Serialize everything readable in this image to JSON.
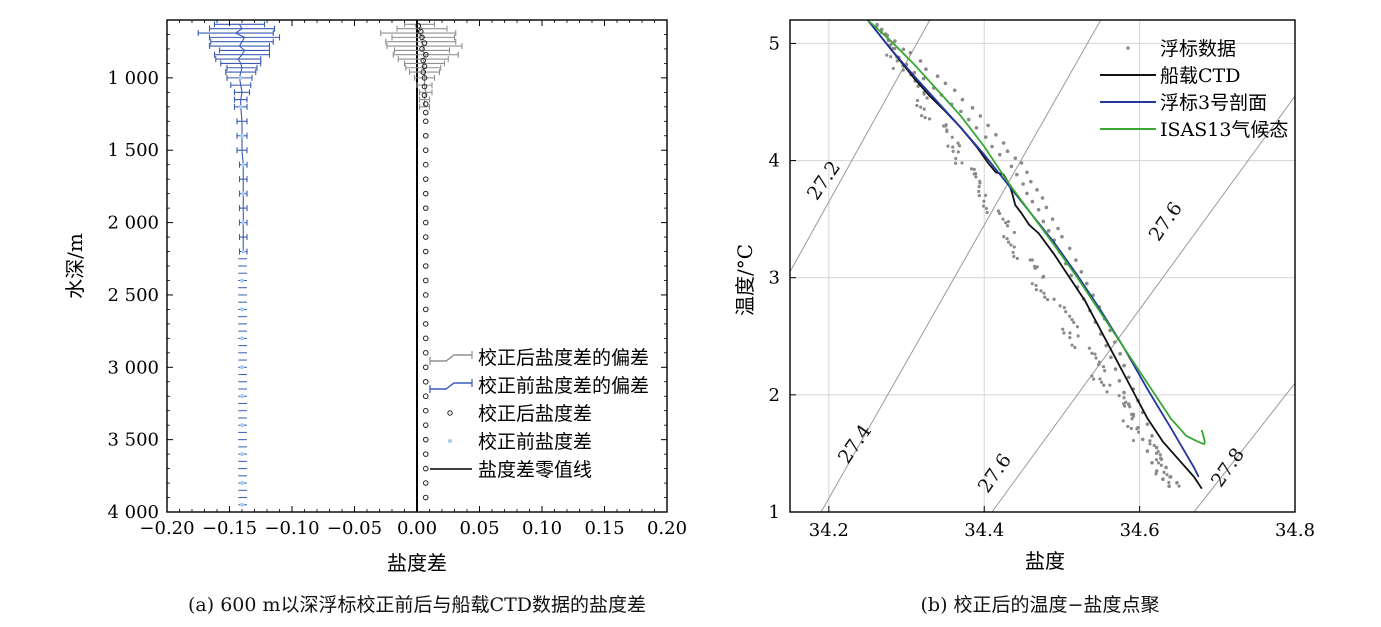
{
  "figure": {
    "caption_a": "(a) 600 m以深浮标校正前后与船载CTD数据的盐度差",
    "caption_b": "(b) 校正后的温度−盐度点聚"
  },
  "chart_data": [
    {
      "type": "scatter",
      "panel": "a",
      "xlabel": "盐度差",
      "ylabel": "水深/m",
      "xlim": [
        -0.2,
        0.2
      ],
      "ylim": [
        600,
        4000
      ],
      "y_reversed": true,
      "xticks": [
        -0.2,
        -0.15,
        -0.1,
        -0.05,
        0.0,
        0.05,
        0.1,
        0.15,
        0.2
      ],
      "xtick_labels": [
        "−0.20",
        "−0.15",
        "−0.10",
        "−0.05",
        "0.00",
        "0.05",
        "0.10",
        "0.15",
        "0.20"
      ],
      "yticks": [
        1000,
        1500,
        2000,
        2500,
        3000,
        3500,
        4000
      ],
      "ytick_labels": [
        "1 000",
        "1 500",
        "2 000",
        "2 500",
        "3 000",
        "3 500",
        "4 000"
      ],
      "legend_position": "bottom-right",
      "colors": {
        "after": "#909090",
        "before": "#3b5bb5",
        "after_point": "#222222",
        "before_point": "#a9cdf0",
        "zero_line": "#000000"
      },
      "series": [
        {
          "name": "校正后盐度差的偏差",
          "style": "errorbar",
          "depth": [
            630,
            660,
            690,
            720,
            750,
            780,
            810,
            840,
            870,
            900,
            930,
            960,
            1000,
            1050,
            1100,
            1150,
            1200
          ],
          "center": [
            0.002,
            0.004,
            0.001,
            0.005,
            0.003,
            0.006,
            0.004,
            0.007,
            0.005,
            0.006,
            0.005,
            0.006,
            0.006,
            0.006,
            0.007,
            0.006,
            0.006
          ],
          "halfwidth": [
            0.012,
            0.02,
            0.03,
            0.025,
            0.028,
            0.03,
            0.022,
            0.026,
            0.02,
            0.016,
            0.014,
            0.012,
            0.008,
            0.006,
            0.005,
            0.004,
            0.004
          ]
        },
        {
          "name": "校正前盐度差的偏差",
          "style": "errorbar",
          "depth": [
            630,
            660,
            690,
            720,
            750,
            780,
            810,
            840,
            870,
            900,
            930,
            960,
            1000,
            1050,
            1100,
            1150,
            1200,
            1300,
            1400,
            1500,
            1600,
            1700,
            1800,
            1900,
            2000,
            2100,
            2200
          ],
          "center": [
            -0.142,
            -0.14,
            -0.145,
            -0.138,
            -0.14,
            -0.142,
            -0.138,
            -0.14,
            -0.143,
            -0.141,
            -0.14,
            -0.141,
            -0.142,
            -0.141,
            -0.14,
            -0.141,
            -0.141,
            -0.14,
            -0.14,
            -0.14,
            -0.139,
            -0.139,
            -0.139,
            -0.139,
            -0.139,
            -0.139,
            -0.139
          ],
          "halfwidth": [
            0.02,
            0.026,
            0.03,
            0.028,
            0.025,
            0.024,
            0.02,
            0.022,
            0.018,
            0.016,
            0.012,
            0.012,
            0.01,
            0.008,
            0.006,
            0.005,
            0.005,
            0.004,
            0.004,
            0.004,
            0.003,
            0.003,
            0.003,
            0.003,
            0.003,
            0.003,
            0.003
          ]
        },
        {
          "name": "校正后盐度差",
          "style": "points",
          "depth": [
            640,
            680,
            720,
            760,
            800,
            840,
            880,
            920,
            960,
            1000,
            1060,
            1120,
            1180,
            1240,
            1300,
            1400,
            1500,
            1600,
            1700,
            1800,
            1900,
            2000,
            2100,
            2200,
            2300,
            2400,
            2500,
            2600,
            2700,
            2800,
            2900,
            3000,
            3100,
            3200,
            3300,
            3400,
            3500,
            3600,
            3700,
            3800,
            3900
          ],
          "value": [
            0.001,
            0.003,
            0.004,
            0.006,
            0.004,
            0.007,
            0.005,
            0.006,
            0.005,
            0.006,
            0.006,
            0.006,
            0.007,
            0.007,
            0.007,
            0.007,
            0.007,
            0.007,
            0.007,
            0.007,
            0.007,
            0.007,
            0.007,
            0.007,
            0.007,
            0.007,
            0.007,
            0.007,
            0.007,
            0.007,
            0.007,
            0.007,
            0.007,
            0.007,
            0.007,
            0.007,
            0.007,
            0.007,
            0.007,
            0.007,
            0.007
          ]
        },
        {
          "name": "校正前盐度差",
          "style": "points",
          "depth": [
            1000,
            1200,
            1400,
            1600,
            1800,
            2000,
            2200,
            2400,
            2600,
            2800,
            3000,
            3200,
            3400,
            3600,
            3800,
            3950
          ],
          "value": [
            -0.141,
            -0.141,
            -0.14,
            -0.139,
            -0.139,
            -0.139,
            -0.139,
            -0.14,
            -0.14,
            -0.14,
            -0.14,
            -0.14,
            -0.14,
            -0.14,
            -0.14,
            -0.14
          ]
        },
        {
          "name": "盐度差零值线",
          "style": "line",
          "x": [
            0.0,
            0.0
          ],
          "y": [
            600,
            4000
          ]
        }
      ]
    },
    {
      "type": "scatter",
      "panel": "b",
      "xlabel": "盐度",
      "ylabel": "温度/°C",
      "xlim": [
        34.15,
        34.8
      ],
      "ylim": [
        1,
        5.2
      ],
      "xticks": [
        34.2,
        34.4,
        34.6,
        34.8
      ],
      "xtick_labels": [
        "34.2",
        "34.4",
        "34.6",
        "34.8"
      ],
      "yticks": [
        1,
        2,
        3,
        4,
        5
      ],
      "ytick_labels": [
        "1",
        "2",
        "3",
        "4",
        "5"
      ],
      "grid": true,
      "legend_position": "top-right",
      "colors": {
        "float_data": "#8a8a8a",
        "ship_ctd": "#111111",
        "float3": "#2436a0",
        "isas13": "#38a832",
        "isopycnal": "#9a9a9a"
      },
      "series": [
        {
          "name": "浮标数据",
          "style": "points",
          "points": [
            [
              34.262,
              5.16
            ],
            [
              34.273,
              5.08
            ],
            [
              34.268,
              5.12
            ],
            [
              34.285,
              5.02
            ],
            [
              34.296,
              4.95
            ],
            [
              34.278,
              4.98
            ],
            [
              34.305,
              4.92
            ],
            [
              34.29,
              4.88
            ],
            [
              34.318,
              4.85
            ],
            [
              34.3,
              4.82
            ],
            [
              34.325,
              4.78
            ],
            [
              34.31,
              4.75
            ],
            [
              34.34,
              4.72
            ],
            [
              34.322,
              4.7
            ],
            [
              34.35,
              4.66
            ],
            [
              34.335,
              4.62
            ],
            [
              34.362,
              4.6
            ],
            [
              34.345,
              4.56
            ],
            [
              34.372,
              4.52
            ],
            [
              34.358,
              4.48
            ],
            [
              34.385,
              4.45
            ],
            [
              34.37,
              4.42
            ],
            [
              34.395,
              4.38
            ],
            [
              34.38,
              4.35
            ],
            [
              34.405,
              4.3
            ],
            [
              34.39,
              4.28
            ],
            [
              34.415,
              4.22
            ],
            [
              34.402,
              4.2
            ],
            [
              34.425,
              4.15
            ],
            [
              34.41,
              4.12
            ],
            [
              34.43,
              4.08
            ],
            [
              34.44,
              4.02
            ],
            [
              34.42,
              4.05
            ],
            [
              34.448,
              3.98
            ],
            [
              34.435,
              3.95
            ],
            [
              34.455,
              3.9
            ],
            [
              34.442,
              3.88
            ],
            [
              34.46,
              3.82
            ],
            [
              34.45,
              3.8
            ],
            [
              34.468,
              3.75
            ],
            [
              34.455,
              3.72
            ],
            [
              34.475,
              3.68
            ],
            [
              34.462,
              3.65
            ],
            [
              34.48,
              3.6
            ],
            [
              34.47,
              3.58
            ],
            [
              34.488,
              3.5
            ],
            [
              34.476,
              3.48
            ],
            [
              34.495,
              3.42
            ],
            [
              34.483,
              3.4
            ],
            [
              34.5,
              3.35
            ],
            [
              34.49,
              3.32
            ],
            [
              34.51,
              3.25
            ],
            [
              34.497,
              3.22
            ],
            [
              34.518,
              3.15
            ],
            [
              34.505,
              3.12
            ],
            [
              34.525,
              3.05
            ],
            [
              34.512,
              3.02
            ],
            [
              34.532,
              2.95
            ],
            [
              34.52,
              2.92
            ],
            [
              34.54,
              2.85
            ],
            [
              34.528,
              2.82
            ],
            [
              34.548,
              2.75
            ],
            [
              34.536,
              2.72
            ],
            [
              34.555,
              2.65
            ],
            [
              34.543,
              2.62
            ],
            [
              34.562,
              2.55
            ],
            [
              34.55,
              2.52
            ],
            [
              34.568,
              2.45
            ],
            [
              34.557,
              2.42
            ],
            [
              34.575,
              2.35
            ],
            [
              34.563,
              2.32
            ],
            [
              34.58,
              2.25
            ],
            [
              34.569,
              2.22
            ],
            [
              34.586,
              2.15
            ],
            [
              34.574,
              2.12
            ],
            [
              34.592,
              2.05
            ],
            [
              34.58,
              2.02
            ],
            [
              34.598,
              1.95
            ],
            [
              34.586,
              1.92
            ],
            [
              34.604,
              1.85
            ],
            [
              34.592,
              1.82
            ],
            [
              34.61,
              1.75
            ],
            [
              34.598,
              1.72
            ],
            [
              34.616,
              1.65
            ],
            [
              34.604,
              1.62
            ],
            [
              34.622,
              1.55
            ],
            [
              34.61,
              1.52
            ],
            [
              34.628,
              1.45
            ],
            [
              34.616,
              1.42
            ],
            [
              34.634,
              1.38
            ],
            [
              34.622,
              1.35
            ],
            [
              34.64,
              1.3
            ],
            [
              34.63,
              1.28
            ],
            [
              34.648,
              1.25
            ],
            [
              34.638,
              1.22
            ]
          ]
        },
        {
          "name": "船载CTD",
          "style": "line",
          "x": [
            34.25,
            34.28,
            34.31,
            34.33,
            34.35,
            34.37,
            34.39,
            34.405,
            34.415,
            34.425,
            34.432,
            34.436,
            34.44,
            34.448,
            34.458,
            34.47,
            34.49,
            34.51,
            34.53,
            34.55,
            34.57,
            34.59,
            34.61,
            34.63,
            34.65,
            34.67,
            34.68
          ],
          "y": [
            5.2,
            4.95,
            4.7,
            4.55,
            4.42,
            4.28,
            4.12,
            3.98,
            3.9,
            3.88,
            3.8,
            3.72,
            3.62,
            3.55,
            3.45,
            3.38,
            3.2,
            3.0,
            2.8,
            2.55,
            2.3,
            2.05,
            1.8,
            1.6,
            1.45,
            1.3,
            1.2
          ]
        },
        {
          "name": "浮标3号剖面",
          "style": "line",
          "x": [
            34.25,
            34.28,
            34.31,
            34.34,
            34.37,
            34.4,
            34.43,
            34.46,
            34.49,
            34.52,
            34.55,
            34.58,
            34.61,
            34.64,
            34.67,
            34.676
          ],
          "y": [
            5.2,
            4.95,
            4.72,
            4.5,
            4.28,
            4.05,
            3.8,
            3.55,
            3.3,
            3.02,
            2.72,
            2.4,
            2.05,
            1.72,
            1.38,
            1.3
          ]
        },
        {
          "name": "ISAS13气候态",
          "style": "line",
          "x": [
            34.25,
            34.28,
            34.31,
            34.34,
            34.37,
            34.4,
            34.43,
            34.46,
            34.49,
            34.52,
            34.55,
            34.58,
            34.6,
            34.62,
            34.64,
            34.66,
            34.675,
            34.683,
            34.684,
            34.68
          ],
          "y": [
            5.2,
            5.02,
            4.82,
            4.6,
            4.38,
            4.12,
            3.82,
            3.55,
            3.28,
            3.0,
            2.7,
            2.4,
            2.2,
            2.0,
            1.8,
            1.65,
            1.6,
            1.58,
            1.6,
            1.7
          ]
        }
      ],
      "isopycnal_labels": [
        "27.2",
        "27.4",
        "27.6",
        "27.6",
        "27.8"
      ],
      "isopycnals": [
        {
          "label": "27.2",
          "x": [
            34.15,
            34.33
          ],
          "y": [
            3.05,
            5.2
          ]
        },
        {
          "label": "27.4",
          "x": [
            34.19,
            34.55
          ],
          "y": [
            1.0,
            5.2
          ]
        },
        {
          "label": "27.6",
          "x": [
            34.41,
            34.8
          ],
          "y": [
            1.0,
            4.55
          ]
        },
        {
          "label": "27.8",
          "x": [
            34.67,
            34.8
          ],
          "y": [
            1.0,
            2.1
          ]
        }
      ]
    }
  ]
}
